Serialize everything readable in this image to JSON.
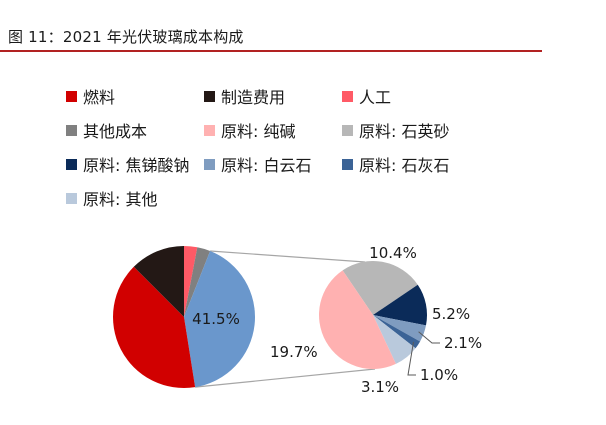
{
  "figure": {
    "title": "图 11：2021 年光伏玻璃成本构成"
  },
  "colors": {
    "title_rule": "#b22222",
    "connector": "#a6a6a6",
    "leader": "#595959"
  },
  "chart_data": [
    {
      "type": "pie",
      "name": "main",
      "slices": [
        {
          "label": "人工",
          "value": 3.0,
          "color": "#ff5a66"
        },
        {
          "label": "其他成本",
          "value": 3.0,
          "color": "#808080"
        },
        {
          "label": "原料",
          "value": 41.5,
          "color": "#6a97cc",
          "data_label": "41.5%"
        },
        {
          "label": "燃料",
          "value": 40.0,
          "color": "#d10000"
        },
        {
          "label": "制造费用",
          "value": 12.5,
          "color": "#231815"
        }
      ]
    },
    {
      "type": "pie",
      "name": "raw-material-breakdown",
      "slices": [
        {
          "label": "原料: 石英砂",
          "value": 10.4,
          "color": "#b7b7b7",
          "data_label": "10.4%"
        },
        {
          "label": "原料: 焦锑酸钠",
          "value": 5.2,
          "color": "#0b2b59",
          "data_label": "5.2%"
        },
        {
          "label": "原料: 白云石",
          "value": 2.1,
          "color": "#7f9cc0",
          "data_label": "2.1%"
        },
        {
          "label": "原料: 石灰石",
          "value": 1.0,
          "color": "#3b6396",
          "data_label": "1.0%"
        },
        {
          "label": "原料: 其他",
          "value": 3.1,
          "color": "#b9c9dc",
          "data_label": "3.1%"
        },
        {
          "label": "原料: 纯碱",
          "value": 19.7,
          "color": "#ffb1b1",
          "data_label": "19.7%"
        }
      ]
    }
  ],
  "legend": [
    {
      "label": "燃料",
      "color": "#d10000"
    },
    {
      "label": "制造费用",
      "color": "#231815"
    },
    {
      "label": "人工",
      "color": "#ff5a66"
    },
    {
      "label": "其他成本",
      "color": "#808080"
    },
    {
      "label": "原料: 纯碱",
      "color": "#ffb1b1"
    },
    {
      "label": "原料: 石英砂",
      "color": "#b7b7b7"
    },
    {
      "label": "原料: 焦锑酸钠",
      "color": "#0b2b59"
    },
    {
      "label": "原料: 白云石",
      "color": "#7f9cc0"
    },
    {
      "label": "原料: 石灰石",
      "color": "#3b6396"
    },
    {
      "label": "原料: 其他",
      "color": "#b9c9dc"
    }
  ]
}
